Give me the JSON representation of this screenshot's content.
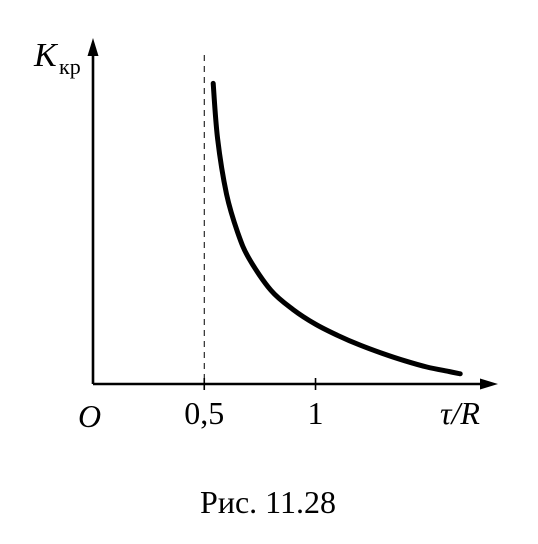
{
  "chart_data": {
    "type": "line",
    "title": "",
    "ylabel": "K",
    "ylabel_subscript": "кр",
    "xlabel": "τ/R",
    "origin_label": "O",
    "x_ticks": [
      {
        "value": 0.5,
        "label": "0,5"
      },
      {
        "value": 1,
        "label": "1"
      }
    ],
    "asymptote_x": 0.5,
    "xlim": [
      0,
      1.82
    ],
    "ylim": [
      0,
      1.22
    ],
    "grid": false,
    "legend": "none",
    "series": [
      {
        "x": [
          0.54,
          0.56,
          0.6,
          0.65,
          0.7,
          0.8,
          0.9,
          1.0,
          1.1,
          1.2,
          1.3,
          1.4,
          1.5,
          1.6,
          1.65
        ],
        "y": [
          1.06,
          0.865,
          0.67,
          0.535,
          0.444,
          0.33,
          0.262,
          0.211,
          0.171,
          0.137,
          0.108,
          0.082,
          0.06,
          0.044,
          0.036
        ]
      }
    ]
  },
  "caption": "Рис. 11.28"
}
